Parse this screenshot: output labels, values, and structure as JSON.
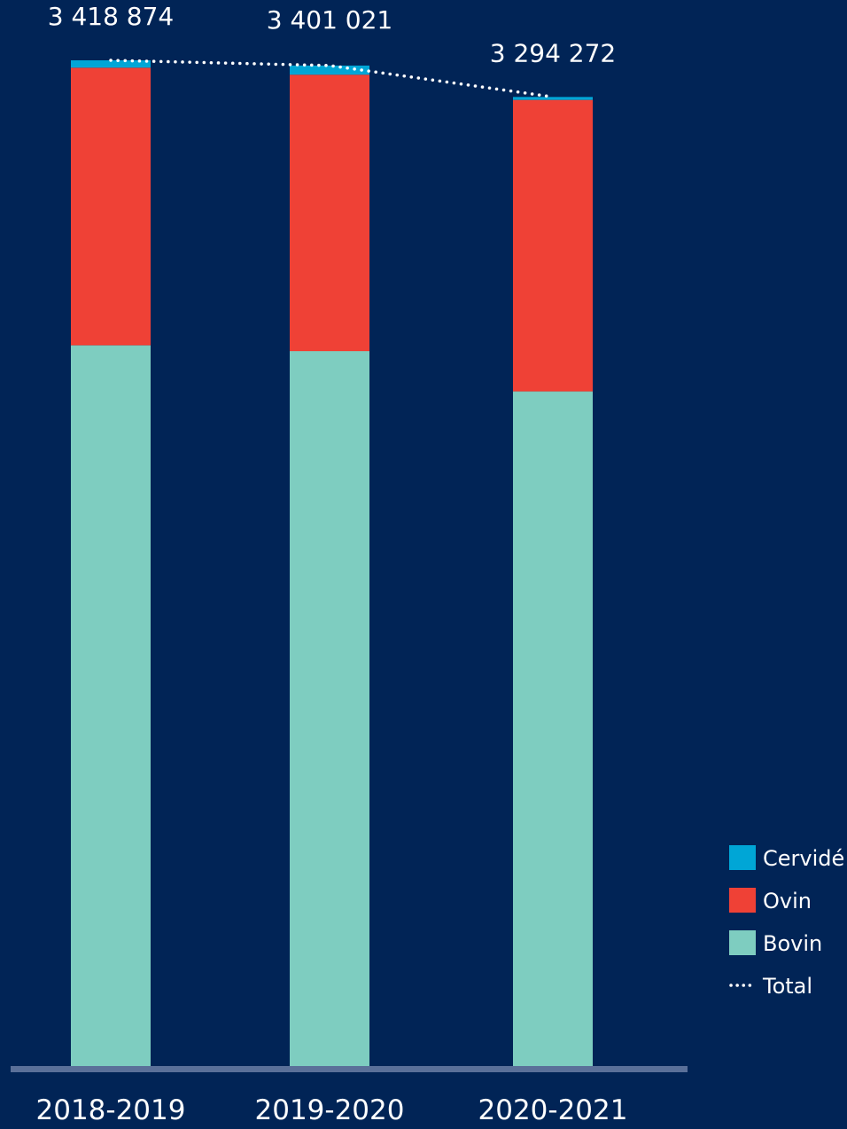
{
  "chart_data": {
    "type": "bar",
    "stacked": true,
    "categories": [
      "2018-2019",
      "2019-2020",
      "2020-2021"
    ],
    "series": [
      {
        "name": "Bovin",
        "color": "#7ECDC0",
        "values": [
          2450000,
          2430000,
          2293000
        ]
      },
      {
        "name": "Ovin",
        "color": "#EF4136",
        "values": [
          943874,
          940021,
          991272
        ]
      },
      {
        "name": "Cervidé",
        "color": "#00A6D6",
        "values": [
          25000,
          31000,
          10000
        ]
      }
    ],
    "totals": [
      3418874,
      3401021,
      3294272
    ],
    "total_labels": [
      "3 418 874",
      "3 401 021",
      "3 294 272"
    ],
    "total_series_name": "Total",
    "legend": {
      "position": "right",
      "items": [
        {
          "label": "Cervidé",
          "kind": "swatch",
          "color": "#00A6D6"
        },
        {
          "label": "Ovin",
          "kind": "swatch",
          "color": "#EF4136"
        },
        {
          "label": "Bovin",
          "kind": "swatch",
          "color": "#7ECDC0"
        },
        {
          "label": "Total",
          "kind": "dotted-line",
          "color": "#FFFFFF"
        }
      ]
    },
    "ylim": [
      0,
      3418874
    ],
    "grid": false,
    "background": "#012456",
    "axis_color": "#5A7099"
  }
}
